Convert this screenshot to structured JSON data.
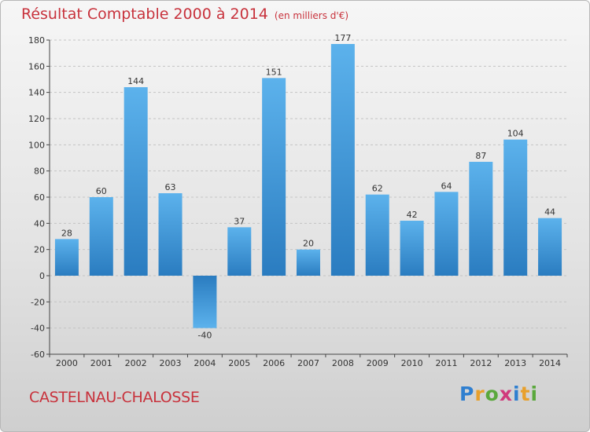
{
  "header": {
    "title": "Résultat Comptable 2000 à 2014",
    "subtitle": "(en milliers d'€)"
  },
  "footer": {
    "commune": "CASTELNAU-CHALOSSE"
  },
  "brand": {
    "letters": [
      "P",
      "r",
      "o",
      "x",
      "i",
      "t",
      "i"
    ],
    "colors": [
      "#2f7fd0",
      "#e8a02c",
      "#5aa83c",
      "#d03a7c",
      "#2f7fd0",
      "#e8a02c",
      "#5aa83c"
    ]
  },
  "colors": {
    "bar_top": "#5cb2ec",
    "bar_bottom": "#2a7cc0",
    "title": "#c8323c",
    "axis": "#444444",
    "grid": "#c4c4c4"
  },
  "chart_data": {
    "type": "bar",
    "title": "Résultat Comptable 2000 à 2014",
    "subtitle": "(en milliers d'€)",
    "categories": [
      "2000",
      "2001",
      "2002",
      "2003",
      "2004",
      "2005",
      "2006",
      "2007",
      "2008",
      "2009",
      "2010",
      "2011",
      "2012",
      "2013",
      "2014"
    ],
    "values": [
      28,
      60,
      144,
      63,
      -40,
      37,
      151,
      20,
      177,
      62,
      42,
      64,
      87,
      104,
      44
    ],
    "ylim": [
      -60,
      180
    ],
    "yticks": [
      -60,
      -40,
      -20,
      0,
      20,
      40,
      60,
      80,
      100,
      120,
      140,
      160,
      180
    ],
    "xlabel": "",
    "ylabel": "",
    "grid": true,
    "grid_style": "dashed horizontal"
  }
}
